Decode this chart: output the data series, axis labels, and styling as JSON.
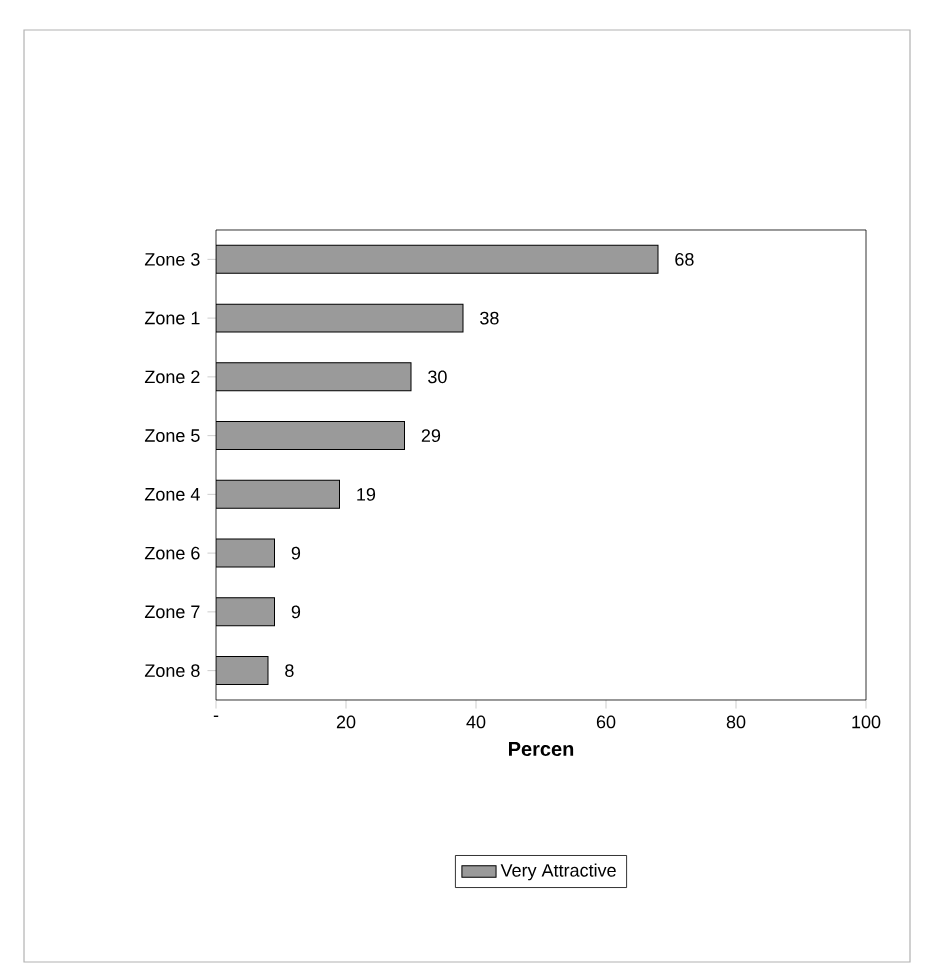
{
  "chart_data": {
    "type": "bar",
    "orientation": "horizontal",
    "categories": [
      "Zone 3",
      "Zone 1",
      "Zone 2",
      "Zone 5",
      "Zone 4",
      "Zone 6",
      "Zone 7",
      "Zone 8"
    ],
    "series": [
      {
        "name": "Very Attractive",
        "color": "#9a9a9a",
        "values": [
          68,
          38,
          30,
          29,
          19,
          9,
          9,
          8
        ]
      }
    ],
    "xlabel": "Percen",
    "xlim": [
      0,
      100
    ],
    "xticks": [
      {
        "value": 0,
        "label": "-"
      },
      20,
      40,
      60,
      80,
      100
    ],
    "data_labels": true,
    "legend": "bottom",
    "grid": false
  }
}
